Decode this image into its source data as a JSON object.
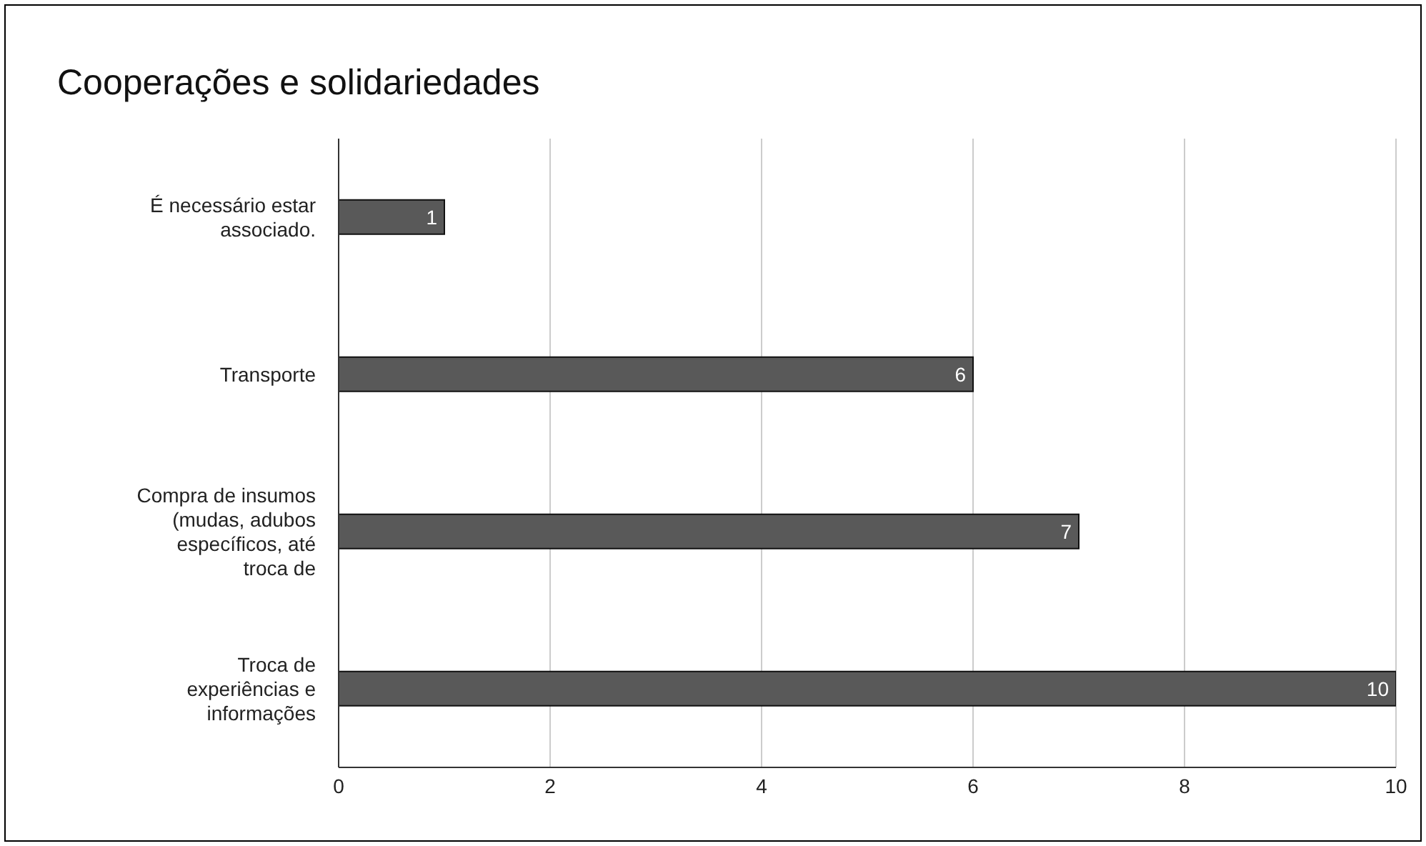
{
  "chart_data": {
    "type": "bar",
    "orientation": "horizontal",
    "title": "Cooperações e solidariedades",
    "categories": [
      "É necessário estar associado.",
      "Transporte",
      "Compra de insumos (mudas, adubos específicos, até troca de",
      "Troca de experiências e informações"
    ],
    "values": [
      1,
      6,
      7,
      10
    ],
    "color": "#595959",
    "xlim": [
      0,
      10
    ],
    "xticks": [
      0,
      2,
      4,
      6,
      8,
      10
    ],
    "grid": "x",
    "data_labels": true
  }
}
